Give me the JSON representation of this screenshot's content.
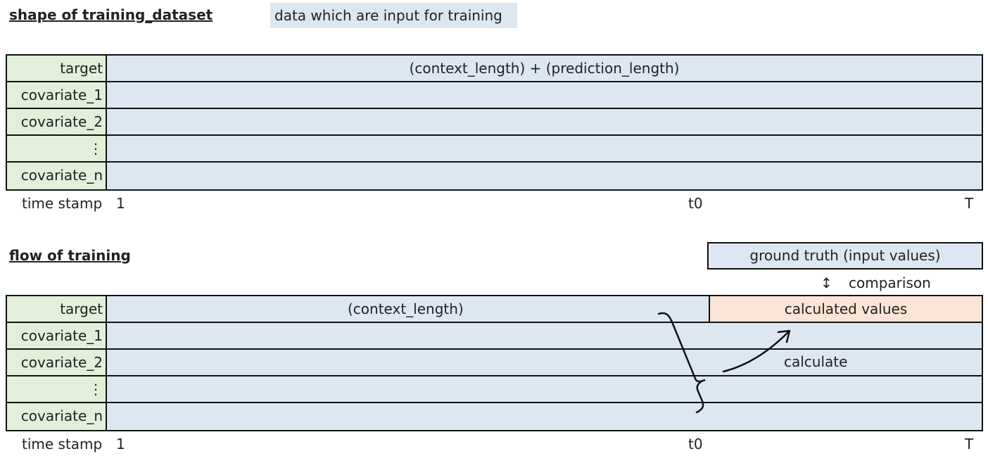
{
  "section1": {
    "title": "shape of training_dataset",
    "legend": "data which are input for training",
    "rows": [
      {
        "label": "target",
        "value": "(context_length) + (prediction_length)"
      },
      {
        "label": "covariate_1",
        "value": ""
      },
      {
        "label": "covariate_2",
        "value": ""
      },
      {
        "label": "⋮",
        "value": ""
      },
      {
        "label": "covariate_n",
        "value": ""
      }
    ],
    "time_label": "time stamp",
    "tick_start": "1",
    "tick_t0": "t0",
    "tick_end": "T"
  },
  "section2": {
    "title": "flow of training",
    "ground_truth": "ground truth (input values)",
    "comparison_arrow": "↕",
    "comparison": "comparison",
    "rows": [
      {
        "label": "target",
        "value": "(context_length)"
      },
      {
        "label": "covariate_1",
        "value": ""
      },
      {
        "label": "covariate_2",
        "value": ""
      },
      {
        "label": "⋮",
        "value": ""
      },
      {
        "label": "covariate_n",
        "value": ""
      }
    ],
    "calculated": "calculated values",
    "calculate": "calculate",
    "time_label": "time stamp",
    "tick_start": "1",
    "tick_t0": "t0",
    "tick_end": "T"
  },
  "colors": {
    "label_fill": "#e2efd9",
    "data_fill": "#dce7f2",
    "calculated_fill": "#fbe4d5"
  }
}
